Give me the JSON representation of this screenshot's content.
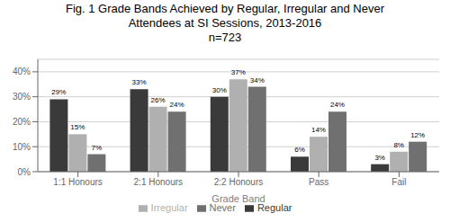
{
  "chart_data": {
    "type": "bar",
    "title": "Fig. 1 Grade Bands Achieved by Regular, Irregular and Never\nAttendees at SI Sessions, 2013-2016",
    "subtitle": "n=723",
    "xlabel": "Grade Band",
    "categories": [
      "1:1 Honours",
      "2:1 Honours",
      "2:2 Honours",
      "Pass",
      "Fail"
    ],
    "series": [
      {
        "name": "Regular",
        "color": "#3a3a3a",
        "values": [
          29,
          33,
          30,
          6,
          3
        ],
        "value_labels": [
          "29%",
          "33%",
          "30%",
          "6%",
          "3%"
        ]
      },
      {
        "name": "Irregular",
        "color": "#b0b0b0",
        "values": [
          15,
          26,
          37,
          14,
          8
        ],
        "value_labels": [
          "15%",
          "26%",
          "37%",
          "14%",
          "8%"
        ]
      },
      {
        "name": "Never",
        "color": "#707070",
        "values": [
          7,
          24,
          34,
          24,
          12
        ],
        "value_labels": [
          "7%",
          "24%",
          "34%",
          "24%",
          "12%"
        ]
      }
    ],
    "ylim": [
      0,
      45
    ],
    "yticks": [
      {
        "value": 0,
        "label": "0%"
      },
      {
        "value": 10,
        "label": "10%"
      },
      {
        "value": 20,
        "label": "20%"
      },
      {
        "value": 30,
        "label": "30%"
      },
      {
        "value": 40,
        "label": "40%"
      }
    ],
    "grid": true,
    "legend": "bottom",
    "data_labels": true
  }
}
